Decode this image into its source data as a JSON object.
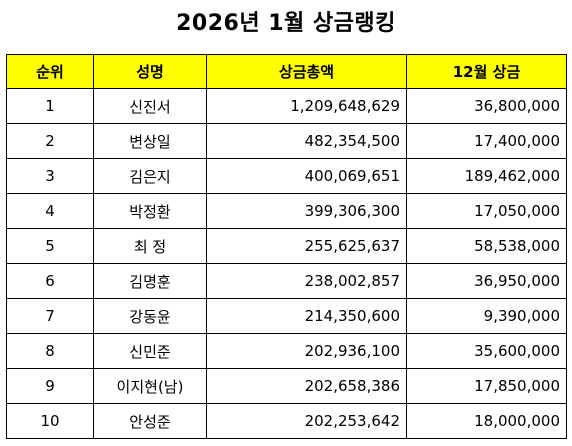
{
  "title": "2026년 1월 상금랭킹",
  "table": {
    "headers": [
      "순위",
      "성명",
      "상금총액",
      "12월 상금"
    ],
    "rows": [
      {
        "rank": "1",
        "name": "신진서",
        "total": "1,209,648,629",
        "december": "36,800,000"
      },
      {
        "rank": "2",
        "name": "변상일",
        "total": "482,354,500",
        "december": "17,400,000"
      },
      {
        "rank": "3",
        "name": "김은지",
        "total": "400,069,651",
        "december": "189,462,000"
      },
      {
        "rank": "4",
        "name": "박정환",
        "total": "399,306,300",
        "december": "17,050,000"
      },
      {
        "rank": "5",
        "name": "최 정",
        "total": "255,625,637",
        "december": "58,538,000"
      },
      {
        "rank": "6",
        "name": "김명훈",
        "total": "238,002,857",
        "december": "36,950,000"
      },
      {
        "rank": "7",
        "name": "강동윤",
        "total": "214,350,600",
        "december": "9,390,000"
      },
      {
        "rank": "8",
        "name": "신민준",
        "total": "202,936,100",
        "december": "35,600,000"
      },
      {
        "rank": "9",
        "name": "이지현(남)",
        "total": "202,658,386",
        "december": "17,850,000"
      },
      {
        "rank": "10",
        "name": "안성준",
        "total": "202,253,642",
        "december": "18,000,000"
      }
    ]
  },
  "colors": {
    "header_background": "#ffff00",
    "border": "#000000"
  }
}
